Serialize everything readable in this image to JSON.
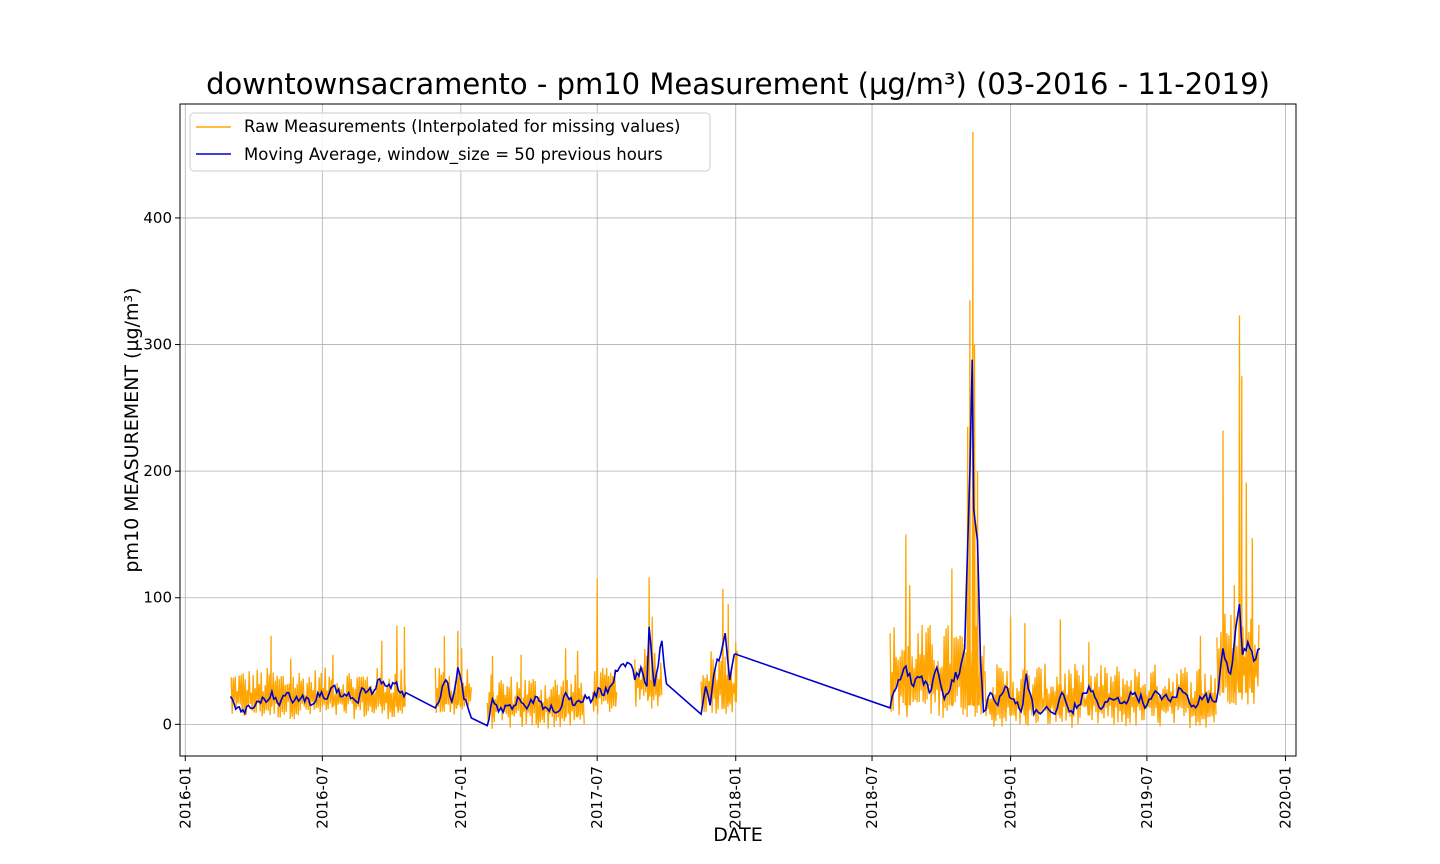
{
  "chart_data": {
    "type": "line",
    "title": "downtownsacramento - pm10 Measurement (µg/m³) (03-2016 - 11-2019)",
    "xlabel": "DATE",
    "ylabel": "pm10 MEASUREMENT (µg/m³)",
    "x_ticks": [
      "2016-01",
      "2016-07",
      "2017-01",
      "2017-07",
      "2018-01",
      "2018-07",
      "2019-01",
      "2019-07",
      "2020-01"
    ],
    "y_ticks": [
      "0",
      "100",
      "200",
      "300",
      "400"
    ],
    "xlim": [
      "2015-12-25",
      "2020-01-15"
    ],
    "ylim": [
      -25,
      490
    ],
    "grid": true,
    "legend_position": "top-left",
    "colors": {
      "raw": "#FFA500",
      "moving_average": "#0000CD",
      "grid": "#b0b0b0"
    },
    "series": [
      {
        "name": "Raw Measurements (Interpolated for missing values)",
        "segments": [
          {
            "start": "2016-03-02",
            "end": "2016-10-20",
            "low": 4,
            "high": 45,
            "peaks": [
              [
                "2016-04-24",
                70
              ],
              [
                "2016-05-20",
                52
              ],
              [
                "2016-07-15",
                55
              ],
              [
                "2016-09-18",
                66
              ],
              [
                "2016-10-08",
                78
              ],
              [
                "2016-10-18",
                77
              ]
            ]
          },
          {
            "start": "2016-11-28",
            "end": "2017-01-15",
            "low": 6,
            "high": 45,
            "peaks": [
              [
                "2016-12-10",
                70
              ],
              [
                "2016-12-28",
                74
              ],
              [
                "2017-01-02",
                60
              ]
            ]
          },
          {
            "start": "2017-02-05",
            "end": "2017-06-15",
            "low": -4,
            "high": 40,
            "peaks": [
              [
                "2017-02-12",
                54
              ],
              [
                "2017-03-22",
                55
              ],
              [
                "2017-05-20",
                60
              ],
              [
                "2017-06-05",
                58
              ]
            ]
          },
          {
            "start": "2017-06-25",
            "end": "2017-07-28",
            "low": 8,
            "high": 45,
            "peaks": [
              [
                "2017-07-01",
                115
              ]
            ]
          },
          {
            "start": "2017-08-20",
            "end": "2017-09-25",
            "low": 12,
            "high": 60,
            "peaks": [
              [
                "2017-09-08",
                116
              ],
              [
                "2017-09-12",
                85
              ]
            ]
          },
          {
            "start": "2017-11-16",
            "end": "2018-01-03",
            "low": 8,
            "high": 60,
            "peaks": [
              [
                "2017-12-15",
                107
              ],
              [
                "2017-12-22",
                95
              ],
              [
                "2018-01-01",
                65
              ]
            ]
          },
          {
            "start": "2018-07-25",
            "end": "2018-11-27",
            "low": 5,
            "high": 80,
            "peaks": [
              [
                "2018-08-15",
                150
              ],
              [
                "2018-08-20",
                110
              ],
              [
                "2018-10-15",
                123
              ],
              [
                "2018-11-05",
                235
              ],
              [
                "2018-11-08",
                335
              ],
              [
                "2018-11-12",
                468
              ],
              [
                "2018-11-14",
                300
              ],
              [
                "2018-11-18",
                200
              ]
            ]
          },
          {
            "start": "2018-11-28",
            "end": "2019-10-02",
            "low": -3,
            "high": 48,
            "peaks": [
              [
                "2019-01-01",
                85
              ],
              [
                "2019-01-20",
                80
              ],
              [
                "2019-03-08",
                83
              ],
              [
                "2019-04-15",
                65
              ],
              [
                "2019-09-10",
                70
              ]
            ]
          },
          {
            "start": "2019-10-02",
            "end": "2019-11-28",
            "low": 15,
            "high": 90,
            "peaks": [
              [
                "2019-10-10",
                232
              ],
              [
                "2019-10-25",
                110
              ],
              [
                "2019-11-01",
                323
              ],
              [
                "2019-11-04",
                275
              ],
              [
                "2019-11-10",
                191
              ],
              [
                "2019-11-18",
                147
              ]
            ]
          }
        ]
      },
      {
        "name": "Moving Average, window_size = 50 previous hours",
        "points": [
          [
            "2016-03-01",
            22
          ],
          [
            "2016-03-08",
            12
          ],
          [
            "2016-03-15",
            10
          ],
          [
            "2016-03-25",
            15
          ],
          [
            "2016-04-05",
            18
          ],
          [
            "2016-04-15",
            20
          ],
          [
            "2016-04-25",
            26
          ],
          [
            "2016-05-05",
            15
          ],
          [
            "2016-05-15",
            25
          ],
          [
            "2016-05-25",
            19
          ],
          [
            "2016-06-05",
            23
          ],
          [
            "2016-06-15",
            15
          ],
          [
            "2016-06-25",
            25
          ],
          [
            "2016-07-05",
            20
          ],
          [
            "2016-07-15",
            30
          ],
          [
            "2016-07-25",
            22
          ],
          [
            "2016-08-05",
            25
          ],
          [
            "2016-08-15",
            18
          ],
          [
            "2016-08-25",
            28
          ],
          [
            "2016-09-05",
            24
          ],
          [
            "2016-09-15",
            36
          ],
          [
            "2016-09-25",
            30
          ],
          [
            "2016-10-05",
            32
          ],
          [
            "2016-10-15",
            26
          ],
          [
            "2016-10-20",
            25
          ],
          [
            "2016-11-28",
            13
          ],
          [
            "2016-12-05",
            22
          ],
          [
            "2016-12-12",
            35
          ],
          [
            "2016-12-20",
            18
          ],
          [
            "2016-12-28",
            45
          ],
          [
            "2017-01-05",
            20
          ],
          [
            "2017-01-12",
            10
          ],
          [
            "2017-01-15",
            5
          ],
          [
            "2017-02-05",
            -1
          ],
          [
            "2017-02-12",
            20
          ],
          [
            "2017-02-20",
            10
          ],
          [
            "2017-03-01",
            15
          ],
          [
            "2017-03-10",
            12
          ],
          [
            "2017-03-20",
            20
          ],
          [
            "2017-04-01",
            15
          ],
          [
            "2017-04-10",
            22
          ],
          [
            "2017-04-20",
            12
          ],
          [
            "2017-05-01",
            15
          ],
          [
            "2017-05-10",
            10
          ],
          [
            "2017-05-20",
            25
          ],
          [
            "2017-06-01",
            15
          ],
          [
            "2017-06-15",
            23
          ],
          [
            "2017-06-25",
            20
          ],
          [
            "2017-07-05",
            28
          ],
          [
            "2017-07-15",
            25
          ],
          [
            "2017-07-28",
            42
          ],
          [
            "2017-08-15",
            47
          ],
          [
            "2017-08-20",
            35
          ],
          [
            "2017-08-28",
            45
          ],
          [
            "2017-09-05",
            30
          ],
          [
            "2017-09-08",
            77
          ],
          [
            "2017-09-15",
            30
          ],
          [
            "2017-09-25",
            66
          ],
          [
            "2017-10-01",
            32
          ],
          [
            "2017-11-16",
            8
          ],
          [
            "2017-11-22",
            30
          ],
          [
            "2017-11-28",
            15
          ],
          [
            "2017-12-05",
            45
          ],
          [
            "2017-12-12",
            55
          ],
          [
            "2017-12-18",
            72
          ],
          [
            "2017-12-24",
            35
          ],
          [
            "2017-12-30",
            55
          ],
          [
            "2018-01-03",
            55
          ],
          [
            "2018-07-25",
            13
          ],
          [
            "2018-08-05",
            35
          ],
          [
            "2018-08-15",
            46
          ],
          [
            "2018-08-25",
            30
          ],
          [
            "2018-09-05",
            38
          ],
          [
            "2018-09-15",
            25
          ],
          [
            "2018-09-25",
            45
          ],
          [
            "2018-10-05",
            20
          ],
          [
            "2018-10-15",
            35
          ],
          [
            "2018-10-25",
            40
          ],
          [
            "2018-11-01",
            60
          ],
          [
            "2018-11-08",
            200
          ],
          [
            "2018-11-11",
            288
          ],
          [
            "2018-11-13",
            170
          ],
          [
            "2018-11-18",
            145
          ],
          [
            "2018-11-22",
            50
          ],
          [
            "2018-11-26",
            10
          ],
          [
            "2018-12-05",
            25
          ],
          [
            "2018-12-15",
            15
          ],
          [
            "2018-12-25",
            30
          ],
          [
            "2019-01-05",
            20
          ],
          [
            "2019-01-15",
            10
          ],
          [
            "2019-01-22",
            40
          ],
          [
            "2019-02-01",
            8
          ],
          [
            "2019-02-15",
            12
          ],
          [
            "2019-03-01",
            8
          ],
          [
            "2019-03-10",
            25
          ],
          [
            "2019-03-20",
            10
          ],
          [
            "2019-04-01",
            15
          ],
          [
            "2019-04-15",
            30
          ],
          [
            "2019-05-01",
            12
          ],
          [
            "2019-05-15",
            20
          ],
          [
            "2019-06-01",
            18
          ],
          [
            "2019-06-15",
            25
          ],
          [
            "2019-07-01",
            15
          ],
          [
            "2019-07-15",
            25
          ],
          [
            "2019-08-01",
            18
          ],
          [
            "2019-08-15",
            28
          ],
          [
            "2019-09-01",
            15
          ],
          [
            "2019-09-15",
            22
          ],
          [
            "2019-10-01",
            18
          ],
          [
            "2019-10-10",
            60
          ],
          [
            "2019-10-20",
            40
          ],
          [
            "2019-11-01",
            95
          ],
          [
            "2019-11-05",
            55
          ],
          [
            "2019-11-12",
            65
          ],
          [
            "2019-11-20",
            50
          ],
          [
            "2019-11-28",
            60
          ]
        ]
      }
    ]
  }
}
